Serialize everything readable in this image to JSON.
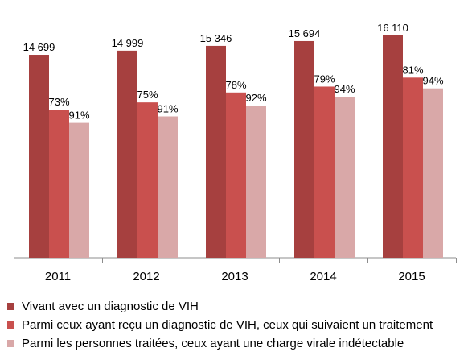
{
  "chart_data": {
    "type": "bar",
    "categories": [
      "2011",
      "2012",
      "2013",
      "2014",
      "2015"
    ],
    "series": [
      {
        "name": "Vivant avec un diagnostic de VIH",
        "color": "#a6403f",
        "values": [
          14699,
          14999,
          15346,
          15694,
          16110
        ],
        "labels": [
          "14 699",
          "14 999",
          "15 346",
          "15 694",
          "16 110"
        ]
      },
      {
        "name": "Parmi ceux ayant reçu un diagnostic de VIH, ceux qui suivaient un traitement",
        "color": "#c9504e",
        "values": [
          10730,
          11249,
          11970,
          12398,
          13049
        ],
        "labels": [
          "73%",
          "75%",
          "78%",
          "79%",
          "81%"
        ]
      },
      {
        "name": "Parmi les personnes traitées, ceux ayant une charge virale indétectable",
        "color": "#d9a8a8",
        "values": [
          9765,
          10237,
          11013,
          11654,
          12266
        ],
        "labels": [
          "91%",
          "91%",
          "92%",
          "94%",
          "94%"
        ]
      }
    ],
    "ylim": [
      0,
      17500
    ],
    "grid": false,
    "legend_position": "bottom"
  }
}
